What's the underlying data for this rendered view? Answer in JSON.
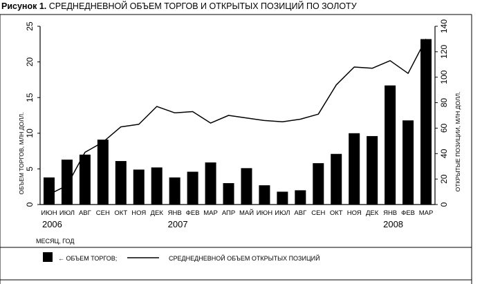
{
  "figure": {
    "label": "Рисунок 1.",
    "title": "СРЕДНЕДНЕВНОЙ ОБЪЕМ ТОРГОВ И ОТКРЫТЫХ ПОЗИЦИЙ ПО ЗОЛОТУ"
  },
  "chart_data": {
    "type": "bar",
    "categories": [
      "ИЮН",
      "ИЮЛ",
      "АВГ",
      "СЕН",
      "ОКТ",
      "НОЯ",
      "ДЕК",
      "ЯНВ",
      "ФЕВ",
      "МАР",
      "АПР",
      "МАЙ",
      "ИЮН",
      "ИЮЛ",
      "АВГ",
      "СЕН",
      "ОКТ",
      "НОЯ",
      "ДЕК",
      "ЯНВ",
      "ФЕВ",
      "МАР"
    ],
    "year_labels": [
      {
        "text": "2006",
        "category_index": 0
      },
      {
        "text": "2007",
        "category_index": 7
      },
      {
        "text": "2008",
        "category_index": 19
      }
    ],
    "series": [
      {
        "name": "ОБЪЕМ ТОРГОВ",
        "type": "bar",
        "axis": "left",
        "values": [
          3.8,
          6.3,
          7.0,
          9.1,
          6.1,
          4.9,
          5.2,
          3.8,
          4.6,
          5.9,
          3.0,
          5.1,
          2.7,
          1.8,
          2.0,
          5.8,
          7.1,
          10.0,
          9.6,
          16.7,
          11.8,
          23.2
        ]
      },
      {
        "name": "СРЕДНЕДНЕВНОЙ ОБЪЕМ ОТКРЫТЫХ ПОЗИЦИЙ",
        "type": "line",
        "axis": "right",
        "values": [
          8,
          15,
          41,
          49,
          61,
          63,
          77,
          72,
          73,
          64,
          70,
          68,
          66,
          65,
          67,
          71,
          94,
          108,
          107,
          113,
          103,
          130
        ]
      }
    ],
    "xlabel": "МЕСЯЦ, ГОД",
    "ylabel_left": "ОБЪЕМ ТОРГОВ, МЛН ДОЛЛ.",
    "ylabel_right": "ОТКРЫТЫЕ ПОЗИЦИИ, МЛН ДОЛЛ.",
    "ylim_left": [
      0,
      25
    ],
    "yticks_left": [
      0,
      5,
      10,
      15,
      20,
      25
    ],
    "ylim_right": [
      0,
      140
    ],
    "yticks_right": [
      0,
      20,
      40,
      60,
      80,
      100,
      120,
      140
    ],
    "grid": false,
    "legend": {
      "placement": "bottom",
      "bar_label": "← ОБЪЕМ ТОРГОВ;",
      "line_label": "СРЕДНЕДНЕВНОЙ ОБЪЕМ ОТКРЫТЫХ ПОЗИЦИЙ"
    },
    "colors": {
      "bars": "#000000",
      "line": "#000000",
      "background": "#ffffff"
    }
  }
}
